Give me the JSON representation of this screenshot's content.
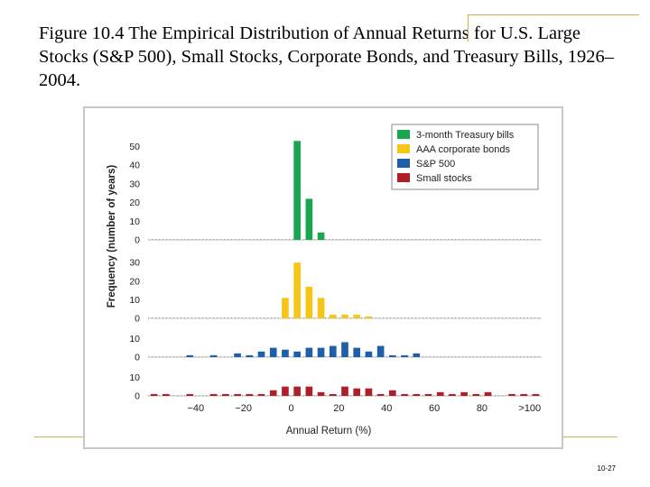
{
  "slide": {
    "title": "Figure 10.4  The Empirical Distribution of Annual Returns for U.S. Large Stocks (S&P 500), Small Stocks, Corporate Bonds, and Treasury Bills, 1926–2004.",
    "slide_number": "10-27",
    "accent_color": "#c9b24a"
  },
  "chart_data": {
    "type": "bar",
    "title": "",
    "xlabel": "Annual Return (%)",
    "ylabel": "Frequency (number of years)",
    "x_tick_labels": [
      "−40",
      "−20",
      "0",
      "20",
      "40",
      "60",
      "80",
      ">100"
    ],
    "x_tick_values": [
      -40,
      -20,
      0,
      20,
      40,
      60,
      80,
      100
    ],
    "xlim": [
      -60,
      105
    ],
    "bin_width": 5,
    "legend": {
      "placement": "top-right",
      "entries": [
        "3-month Treasury bills",
        "AAA corporate bonds",
        "S&P 500",
        "Small stocks"
      ]
    },
    "series": [
      {
        "name": "3-month Treasury bills",
        "color": "#1aa64f",
        "y_ticks": [
          "50",
          "40",
          "30",
          "20",
          "10",
          "0"
        ],
        "ylim": [
          0,
          57
        ],
        "bins": [
          0,
          5,
          10
        ],
        "values": [
          53,
          22,
          4
        ]
      },
      {
        "name": "AAA corporate bonds",
        "color": "#f5c518",
        "y_ticks": [
          "30",
          "20",
          "10",
          "0"
        ],
        "ylim": [
          0,
          33
        ],
        "bins": [
          -5,
          0,
          5,
          10,
          15,
          20,
          25,
          30
        ],
        "values": [
          11,
          30,
          17,
          11,
          2,
          2,
          2,
          1
        ]
      },
      {
        "name": "S&P 500",
        "color": "#1f5fa8",
        "y_ticks": [
          "10",
          "0"
        ],
        "ylim": [
          0,
          14
        ],
        "bins": [
          -45,
          -35,
          -25,
          -20,
          -15,
          -10,
          -5,
          0,
          5,
          10,
          15,
          20,
          25,
          30,
          35,
          40,
          45,
          50
        ],
        "values": [
          1,
          1,
          2,
          1,
          3,
          5,
          4,
          3,
          5,
          5,
          6,
          8,
          5,
          3,
          6,
          1,
          1,
          2
        ]
      },
      {
        "name": "Small stocks",
        "color": "#b01e2a",
        "y_ticks": [
          "10",
          "0"
        ],
        "ylim": [
          0,
          14
        ],
        "bins": [
          -60,
          -55,
          -45,
          -35,
          -30,
          -25,
          -20,
          -15,
          -10,
          -5,
          0,
          5,
          10,
          15,
          20,
          25,
          30,
          35,
          40,
          45,
          50,
          55,
          60,
          65,
          70,
          75,
          80,
          90,
          95,
          100
        ],
        "values": [
          1,
          1,
          1,
          1,
          1,
          1,
          1,
          1,
          3,
          5,
          5,
          5,
          2,
          1,
          5,
          4,
          4,
          1,
          3,
          1,
          1,
          1,
          2,
          1,
          2,
          1,
          2,
          1,
          1,
          1
        ]
      }
    ]
  }
}
